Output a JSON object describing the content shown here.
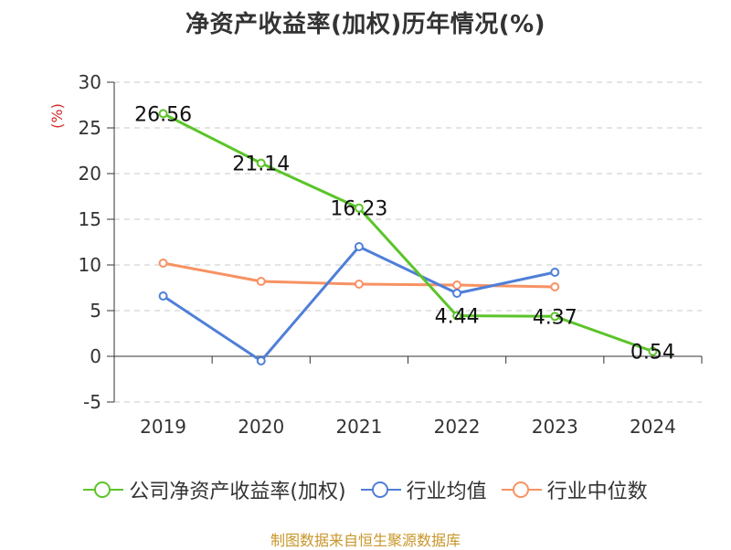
{
  "chart_data": {
    "type": "line",
    "title": "净资产收益率(加权)历年情况(%)",
    "ylabel": "(%)",
    "ylim": [
      -5,
      30
    ],
    "yticks": [
      -5,
      0,
      5,
      10,
      15,
      20,
      25,
      30
    ],
    "categories": [
      "2019",
      "2020",
      "2021",
      "2022",
      "2023",
      "2024"
    ],
    "grid": true,
    "legend_position": "bottom",
    "series": [
      {
        "name": "公司净资产收益率(加权)",
        "color": "#5cc42a",
        "values": [
          26.56,
          21.14,
          16.23,
          4.44,
          4.37,
          0.54
        ],
        "labels": [
          "26.56",
          "21.14",
          "16.23",
          "4.44",
          "4.37",
          "0.54"
        ]
      },
      {
        "name": "行业均值",
        "color": "#4f7fd8",
        "values": [
          6.6,
          -0.5,
          12.0,
          6.9,
          9.2,
          null
        ]
      },
      {
        "name": "行业中位数",
        "color": "#f79263",
        "values": [
          10.2,
          8.2,
          7.9,
          7.8,
          7.6,
          null
        ]
      }
    ]
  },
  "source_text": "制图数据来自恒生聚源数据库"
}
